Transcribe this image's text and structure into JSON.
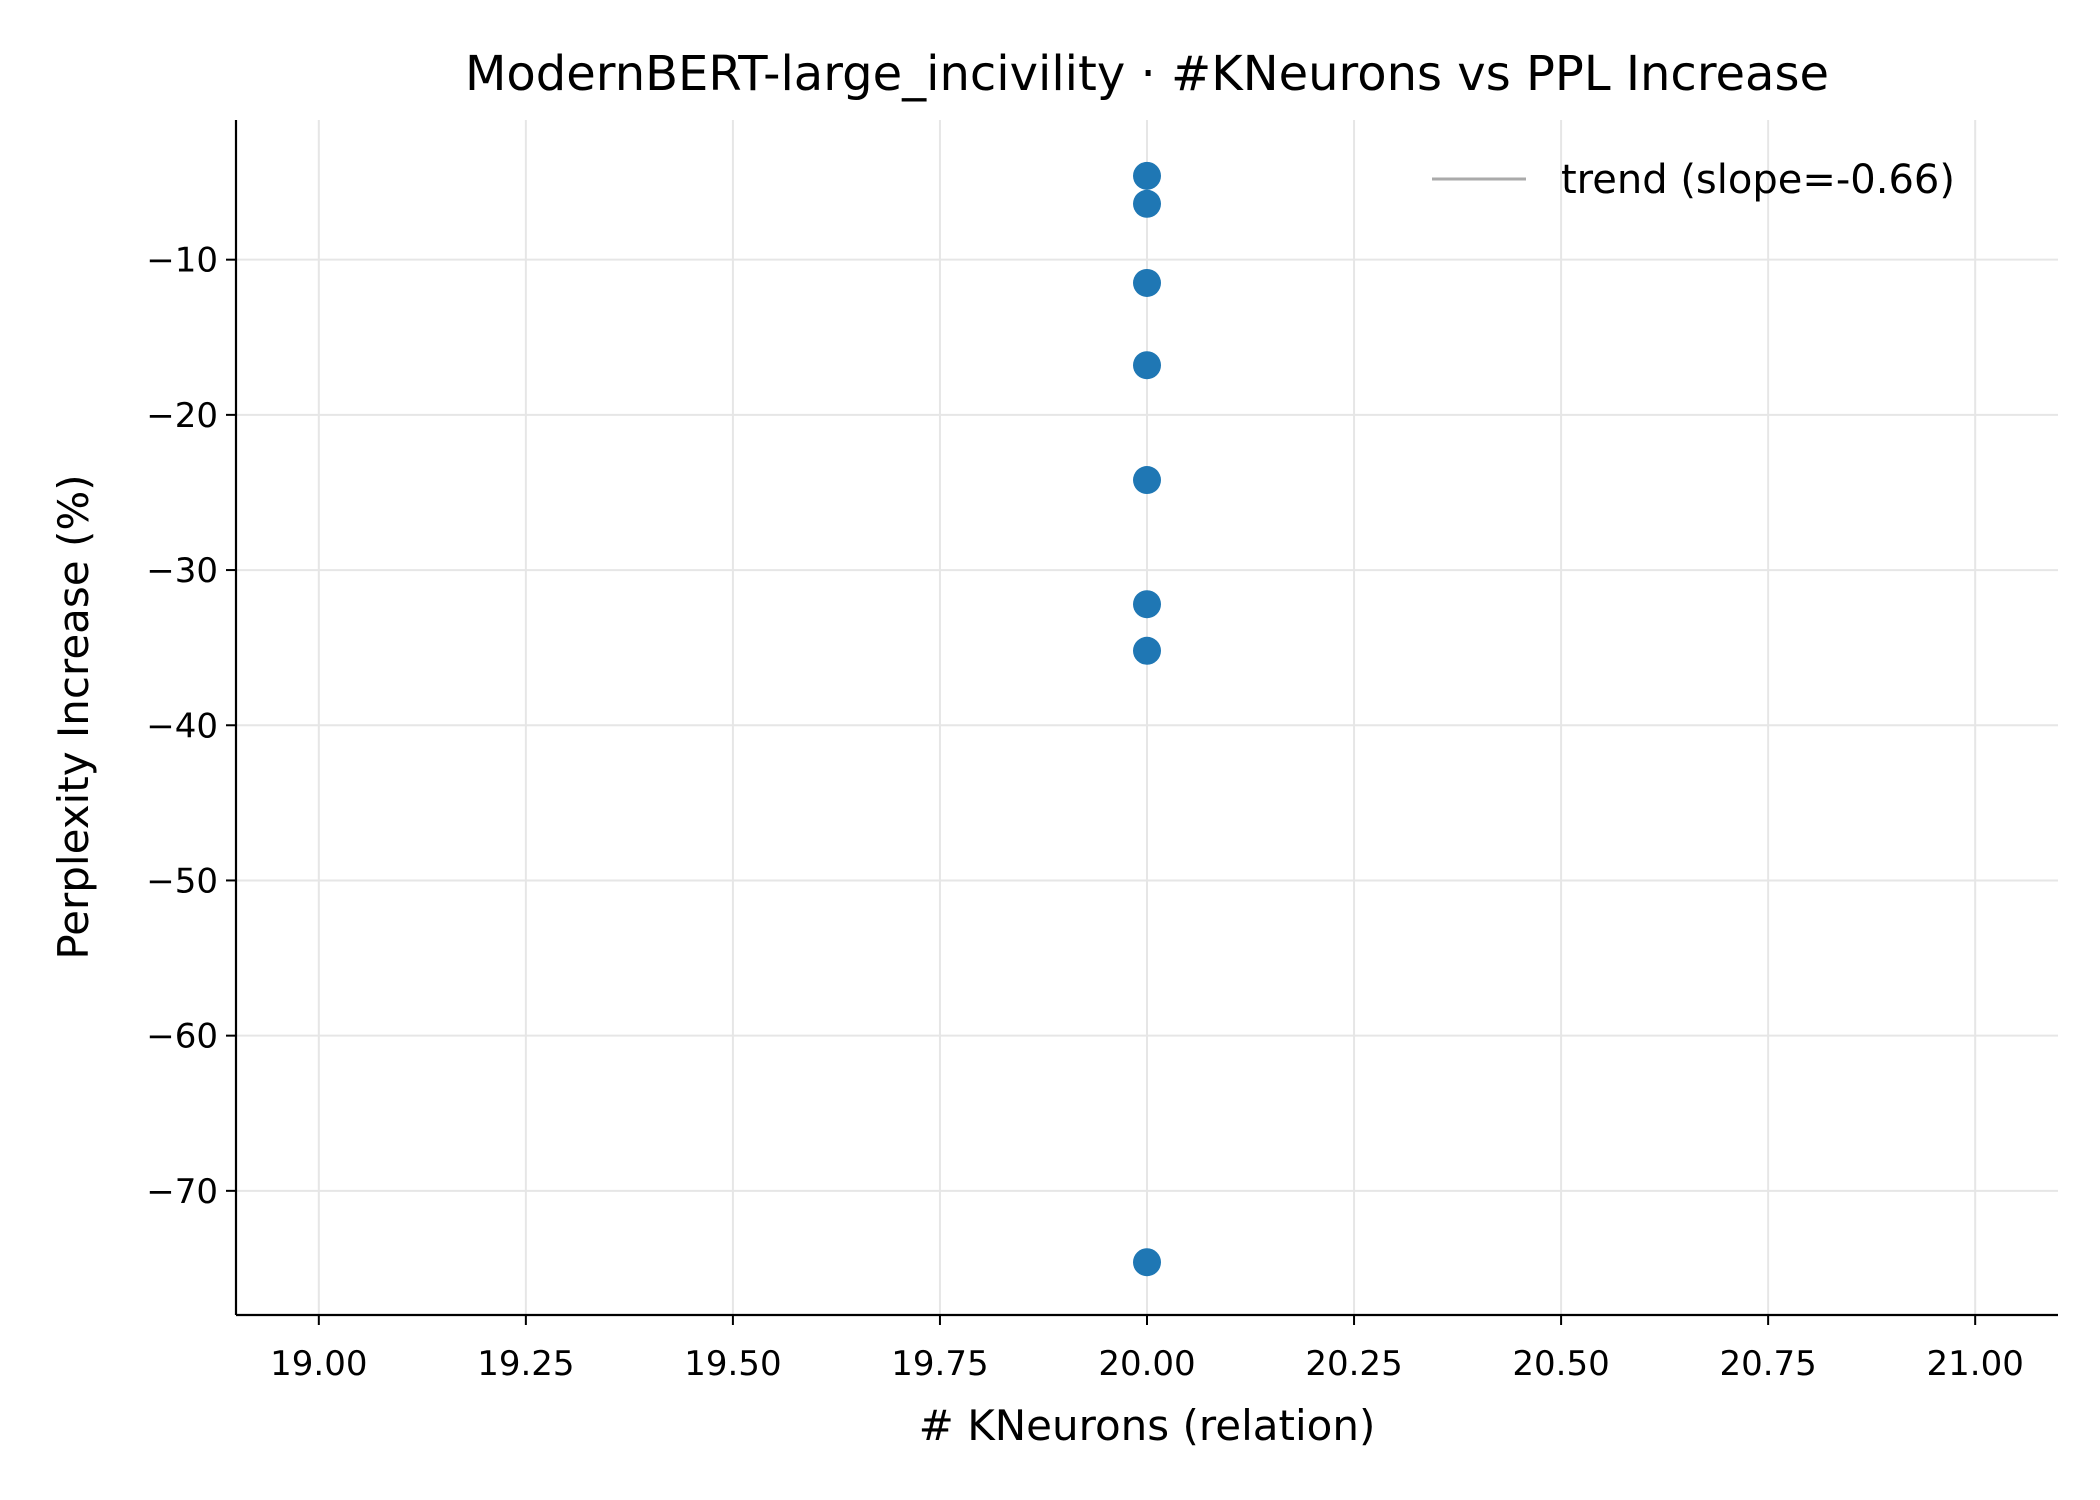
{
  "chart_data": {
    "type": "scatter",
    "title": "ModernBERT-large_incivility · #KNeurons vs PPL Increase",
    "xlabel": "# KNeurons (relation)",
    "ylabel": "Perplexity Increase (%)",
    "xlim": [
      18.9,
      21.1
    ],
    "ylim": [
      -78.0,
      -1.0
    ],
    "x_ticks": [
      19.0,
      19.25,
      19.5,
      19.75,
      20.0,
      20.25,
      20.5,
      20.75,
      21.0
    ],
    "x_tick_labels": [
      "19.00",
      "19.25",
      "19.50",
      "19.75",
      "20.00",
      "20.25",
      "20.50",
      "20.75",
      "21.00"
    ],
    "y_ticks": [
      -10,
      -20,
      -30,
      -40,
      -50,
      -60,
      -70
    ],
    "y_tick_labels": [
      "−10",
      "−20",
      "−30",
      "−40",
      "−50",
      "−60",
      "−70"
    ],
    "grid": true,
    "legend_position": "top-right",
    "series": [
      {
        "name": "",
        "kind": "scatter",
        "color": "#1f77b4",
        "points": [
          {
            "x": 20.0,
            "y": -4.6
          },
          {
            "x": 20.0,
            "y": -6.4
          },
          {
            "x": 20.0,
            "y": -11.5
          },
          {
            "x": 20.0,
            "y": -16.8
          },
          {
            "x": 20.0,
            "y": -24.2
          },
          {
            "x": 20.0,
            "y": -32.2
          },
          {
            "x": 20.0,
            "y": -35.2
          },
          {
            "x": 20.0,
            "y": -74.6
          }
        ]
      },
      {
        "name": "trend (slope=-0.66)",
        "kind": "line",
        "color": "#aaaaaa"
      }
    ]
  }
}
